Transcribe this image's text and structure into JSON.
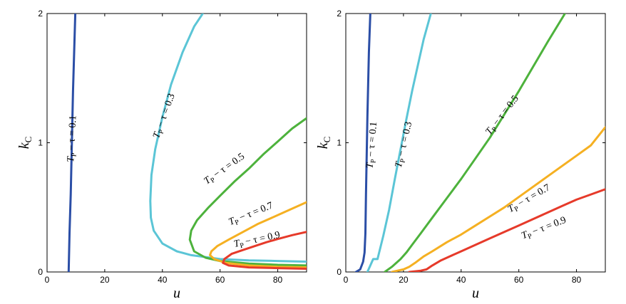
{
  "chart_data": [
    {
      "type": "line",
      "xlabel": "u",
      "ylabel": "k",
      "ylabel_sub": "C",
      "xlim": [
        0,
        90
      ],
      "ylim": [
        0,
        2
      ],
      "xticks": [
        "0",
        "20",
        "40",
        "60",
        "80"
      ],
      "yticks": [
        "0",
        "1",
        "2"
      ],
      "grid": false,
      "series": [
        {
          "label": "T_P − τ = 0.1",
          "label_text": "− τ = 0.1",
          "color": "#2b4ea6",
          "x": [
            7.5,
            7.8,
            8.2,
            8.6,
            9.0,
            9.4,
            9.8
          ],
          "y": [
            0.0,
            0.3,
            0.6,
            1.0,
            1.4,
            1.7,
            2.0
          ],
          "label_at": [
            9.6,
            1.03
          ],
          "label_angle": -87
        },
        {
          "label": "T_P − τ = 0.3",
          "label_text": "− τ = 0.3",
          "color": "#5bc5d6",
          "x": [
            90,
            80,
            70,
            60,
            50,
            45,
            40,
            37,
            36,
            35.8,
            36.2,
            37.5,
            40,
            43,
            47,
            51,
            54
          ],
          "y": [
            0.08,
            0.085,
            0.09,
            0.1,
            0.13,
            0.16,
            0.22,
            0.32,
            0.42,
            0.55,
            0.75,
            0.95,
            1.2,
            1.45,
            1.7,
            1.9,
            2.0
          ],
          "label_at": [
            41.5,
            1.2
          ],
          "label_angle": -70
        },
        {
          "label": "T_P − τ = 0.5",
          "label_text": "− τ = 0.5",
          "color": "#4db23c",
          "x": [
            90,
            80,
            70,
            60,
            55,
            51,
            49.5,
            50,
            52,
            56,
            60,
            65,
            70,
            75,
            80,
            85,
            90
          ],
          "y": [
            0.05,
            0.055,
            0.065,
            0.085,
            0.11,
            0.16,
            0.25,
            0.32,
            0.4,
            0.5,
            0.59,
            0.7,
            0.8,
            0.91,
            1.01,
            1.11,
            1.19
          ],
          "label_at": [
            62,
            0.78
          ],
          "label_angle": -35
        },
        {
          "label": "T_P − τ = 0.7",
          "label_text": "− τ = 0.7",
          "color": "#f5b022",
          "x": [
            90,
            80,
            70,
            62,
            58,
            56.5,
            57,
            59,
            63,
            68,
            73,
            78,
            84,
            90
          ],
          "y": [
            0.035,
            0.04,
            0.05,
            0.07,
            0.1,
            0.13,
            0.16,
            0.2,
            0.25,
            0.31,
            0.37,
            0.42,
            0.48,
            0.54
          ],
          "label_at": [
            71,
            0.43
          ],
          "label_angle": -22
        },
        {
          "label": "T_P − τ = 0.9",
          "label_text": "− τ = 0.9",
          "color": "#e63a2a",
          "x": [
            90,
            80,
            70,
            63,
            61,
            61.5,
            64,
            68,
            72,
            76,
            80,
            85,
            90
          ],
          "y": [
            0.025,
            0.03,
            0.035,
            0.05,
            0.07,
            0.1,
            0.14,
            0.17,
            0.2,
            0.23,
            0.255,
            0.285,
            0.31
          ],
          "label_at": [
            73,
            0.23
          ],
          "label_angle": -12
        }
      ]
    },
    {
      "type": "line",
      "xlabel": "u",
      "ylabel": "k",
      "ylabel_sub": "C",
      "xlim": [
        0,
        90
      ],
      "ylim": [
        0,
        2
      ],
      "xticks": [
        "0",
        "20",
        "40",
        "60",
        "80"
      ],
      "yticks": [
        "0",
        "1",
        "2"
      ],
      "grid": false,
      "series": [
        {
          "label": "T_P − τ = 0.1",
          "label_text": "− τ = 0.1",
          "color": "#2b4ea6",
          "x": [
            3.5,
            5,
            6,
            6.5,
            6.8,
            7,
            7.5,
            8,
            8.5
          ],
          "y": [
            0.0,
            0.02,
            0.08,
            0.15,
            0.3,
            0.6,
            1.2,
            1.7,
            2.0
          ],
          "label_at": [
            10,
            0.98
          ],
          "label_angle": -85
        },
        {
          "label": "T_P − τ = 0.3",
          "label_text": "− τ = 0.3",
          "color": "#5bc5d6",
          "x": [
            7.5,
            8.5,
            9.5,
            11,
            13,
            15,
            17,
            19,
            21,
            23,
            25,
            27,
            29.5
          ],
          "y": [
            0.0,
            0.05,
            0.1,
            0.1,
            0.28,
            0.48,
            0.72,
            0.95,
            1.18,
            1.4,
            1.6,
            1.8,
            2.0
          ],
          "label_at": [
            21,
            0.98
          ],
          "label_angle": -77
        },
        {
          "label": "T_P − τ = 0.5",
          "label_text": "− τ = 0.5",
          "color": "#4db23c",
          "x": [
            13.5,
            16,
            19,
            21,
            23,
            26,
            30,
            35,
            40,
            45,
            50,
            55,
            60,
            65,
            70,
            76
          ],
          "y": [
            0.0,
            0.04,
            0.1,
            0.15,
            0.21,
            0.3,
            0.42,
            0.57,
            0.72,
            0.88,
            1.04,
            1.22,
            1.4,
            1.59,
            1.78,
            2.0
          ],
          "label_at": [
            55,
            1.2
          ],
          "label_angle": -52
        },
        {
          "label": "T_P − τ = 0.7",
          "label_text": "− τ = 0.7",
          "color": "#f5b022",
          "x": [
            16,
            20,
            22,
            24,
            27,
            30,
            35,
            40,
            45,
            50,
            55,
            60,
            65,
            70,
            75,
            80,
            85,
            90
          ],
          "y": [
            0.0,
            0.02,
            0.04,
            0.07,
            0.12,
            0.16,
            0.23,
            0.29,
            0.36,
            0.43,
            0.5,
            0.58,
            0.66,
            0.74,
            0.82,
            0.9,
            0.98,
            1.12
          ],
          "label_at": [
            64,
            0.55
          ],
          "label_angle": -30
        },
        {
          "label": "T_P − τ = 0.9",
          "label_text": "− τ = 0.9",
          "color": "#e63a2a",
          "x": [
            22,
            26,
            28,
            30,
            33,
            36,
            40,
            45,
            50,
            55,
            60,
            65,
            70,
            75,
            80,
            85,
            90
          ],
          "y": [
            0.0,
            0.01,
            0.02,
            0.05,
            0.09,
            0.12,
            0.16,
            0.21,
            0.26,
            0.31,
            0.36,
            0.41,
            0.46,
            0.51,
            0.56,
            0.6,
            0.64
          ],
          "label_at": [
            69,
            0.32
          ],
          "label_angle": -21
        }
      ]
    }
  ]
}
